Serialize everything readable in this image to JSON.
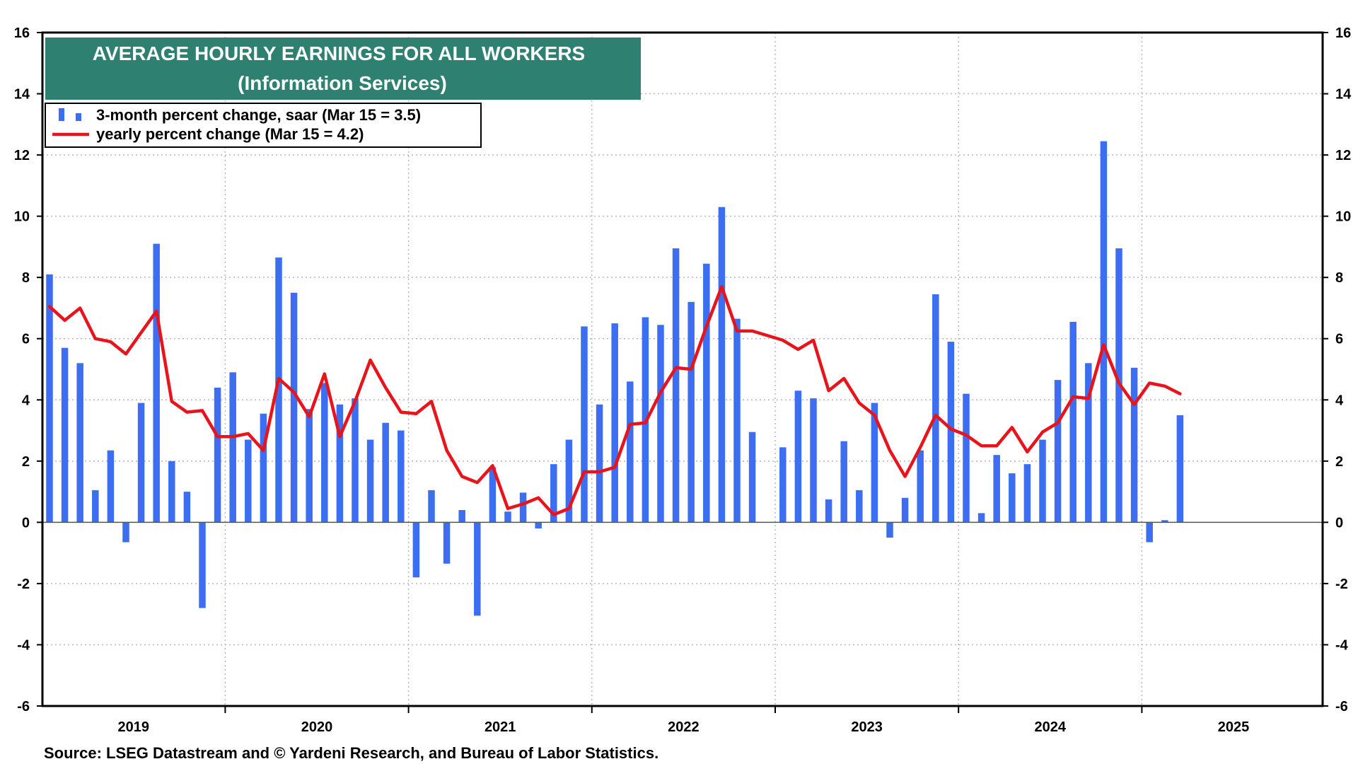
{
  "chart_data": {
    "type": "bar",
    "title": "AVERAGE HOURLY EARNINGS FOR ALL WORKERS",
    "subtitle": "(Information Services)",
    "source": "Source: LSEG Datastream and © Yardeni Research, and Bureau of Labor Statistics.",
    "y_ticks": [
      "-6",
      "-4",
      "-2",
      "0",
      "2",
      "4",
      "6",
      "8",
      "10",
      "12",
      "14",
      "16"
    ],
    "ylim": [
      -6,
      16
    ],
    "x_labels": [
      "2019",
      "2020",
      "2021",
      "2022",
      "2023",
      "2024",
      "2025"
    ],
    "legend_position": "top-left",
    "grid": true,
    "series": [
      {
        "name": "3-month percent change, saar (Mar 15 = 3.5)",
        "type": "bar",
        "color": "#3d6ef2",
        "start": "2019-01",
        "values": [
          8.1,
          5.7,
          5.2,
          1.05,
          2.35,
          -0.65,
          3.9,
          9.1,
          2.0,
          1.0,
          -2.8,
          4.4,
          4.9,
          2.7,
          3.55,
          8.65,
          7.5,
          3.7,
          4.55,
          3.85,
          4.05,
          2.7,
          3.25,
          3.0,
          -1.8,
          1.05,
          -1.35,
          0.4,
          -3.05,
          1.8,
          0.35,
          0.97,
          -0.2,
          1.9,
          2.7,
          6.4,
          3.85,
          6.5,
          4.6,
          6.7,
          6.45,
          8.95,
          7.2,
          8.45,
          10.3,
          6.65,
          2.95,
          0.0,
          2.45,
          4.3,
          4.05,
          0.75,
          2.65,
          1.05,
          3.9,
          -0.5,
          0.8,
          2.35,
          7.45,
          5.9,
          4.2,
          0.3,
          2.2,
          1.6,
          1.9,
          2.7,
          4.65,
          6.55,
          5.2,
          12.45,
          8.95,
          5.05,
          -0.65,
          0.07,
          3.5
        ]
      },
      {
        "name": "yearly percent change (Mar 15 = 4.2)",
        "type": "line",
        "color": "#e8141b",
        "start": "2019-01",
        "values": [
          7.05,
          6.6,
          7.0,
          6.0,
          5.9,
          5.5,
          6.2,
          6.9,
          3.95,
          3.6,
          3.65,
          2.8,
          2.8,
          2.9,
          2.35,
          4.7,
          4.25,
          3.45,
          4.85,
          2.8,
          3.95,
          5.3,
          4.4,
          3.6,
          3.55,
          3.95,
          2.35,
          1.5,
          1.3,
          1.85,
          0.45,
          0.6,
          0.8,
          0.25,
          0.45,
          1.65,
          1.65,
          1.8,
          3.2,
          3.25,
          4.25,
          5.05,
          5.0,
          6.4,
          7.7,
          6.25,
          6.25,
          6.1,
          5.95,
          5.65,
          5.95,
          4.3,
          4.7,
          3.9,
          3.5,
          2.35,
          1.5,
          2.45,
          3.5,
          3.05,
          2.85,
          2.5,
          2.5,
          3.1,
          2.3,
          2.95,
          3.25,
          4.1,
          4.05,
          5.8,
          4.55,
          3.85,
          4.55,
          4.45,
          4.2
        ]
      }
    ]
  }
}
